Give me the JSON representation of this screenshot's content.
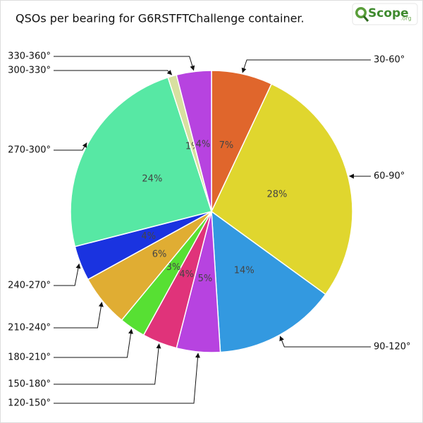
{
  "chart_data": {
    "type": "pie",
    "title": "QSOs per bearing for G6RSTFTChallenge container.",
    "logo": "Scope",
    "logo_suffix": ".org",
    "categories": [
      "30-60°",
      "60-90°",
      "90-120°",
      "120-150°",
      "150-180°",
      "180-210°",
      "210-240°",
      "240-270°",
      "270-300°",
      "300-330°",
      "330-360°"
    ],
    "values": [
      7,
      28,
      14,
      5,
      4,
      3,
      6,
      4,
      24,
      1,
      4
    ],
    "value_labels": [
      "7%",
      "28%",
      "14%",
      "5%",
      "4%",
      "3%",
      "6%",
      "4%",
      "24%",
      "1%",
      "4%"
    ],
    "colors": [
      "#e0662c",
      "#e0d62e",
      "#3399e0",
      "#b743e0",
      "#e0337a",
      "#57e033",
      "#e0ad33",
      "#1a33e0",
      "#57e8a4",
      "#d8e0a0",
      "#b743e0"
    ]
  }
}
